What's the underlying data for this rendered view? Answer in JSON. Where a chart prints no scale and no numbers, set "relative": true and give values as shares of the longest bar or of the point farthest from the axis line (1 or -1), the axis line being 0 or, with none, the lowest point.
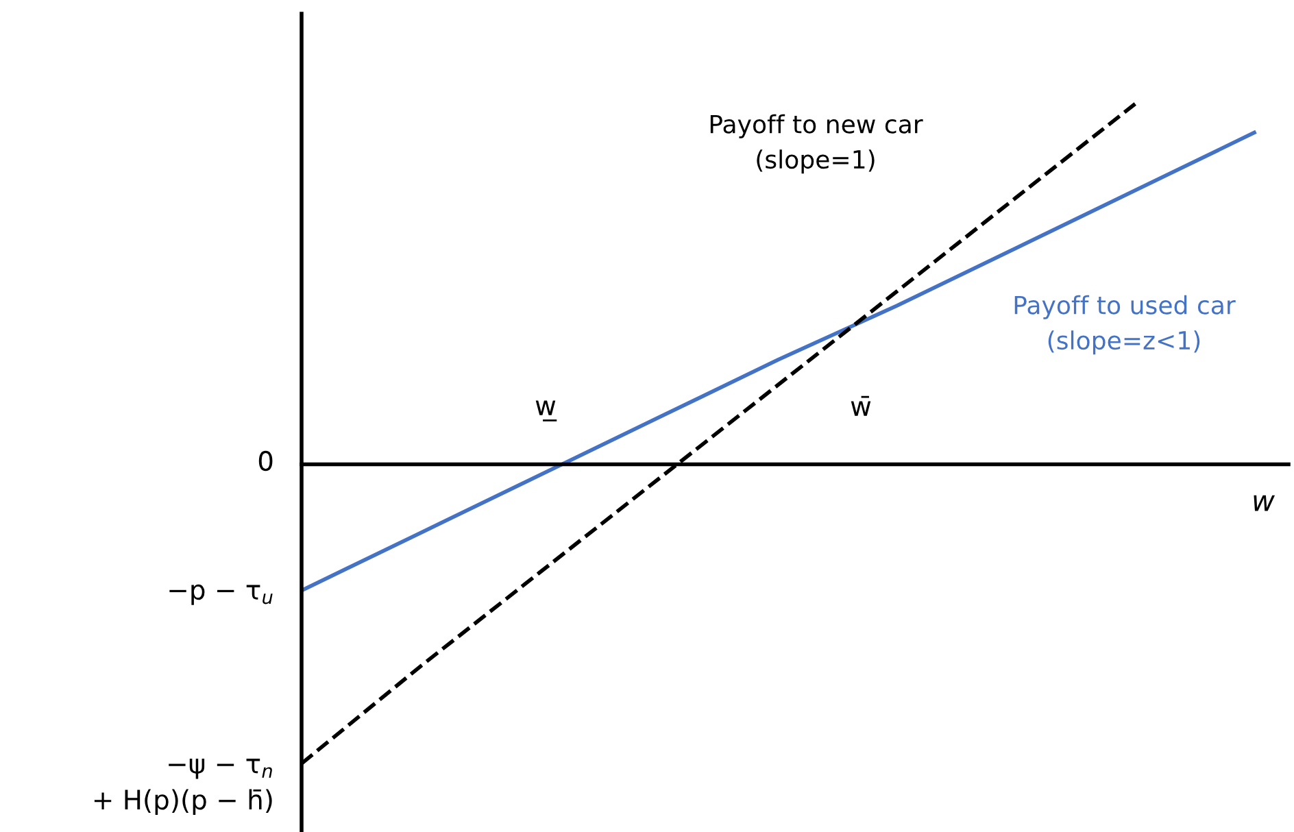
{
  "chart_data": {
    "type": "line",
    "relative": true,
    "xlabel": "w",
    "categories": [
      null,
      null,
      null,
      null,
      null,
      null,
      null,
      null,
      null
    ],
    "series": [
      {
        "name": "Payoff to used car\n(slope=z<1)",
        "color": "#4472c4",
        "line_style": "solid",
        "values": [
          -0.35,
          -0.19,
          -0.03,
          0.13,
          0.29,
          0.44,
          0.6,
          0.76,
          0.92
        ]
      },
      {
        "name": "Payoff to new car\n(slope=1)",
        "color": "#000000",
        "line_style": "dashed",
        "values": [
          -0.83,
          -0.56,
          -0.3,
          -0.04,
          0.22,
          0.48,
          0.74,
          1.0,
          null
        ]
      }
    ],
    "annotations": [
      "0",
      "−p − τ$_{u}$",
      "−ψ − τ$_{n}$\n+ H(p)(p − h̄)",
      "w̲",
      "w̄"
    ],
    "legend": false,
    "marker": "none"
  }
}
